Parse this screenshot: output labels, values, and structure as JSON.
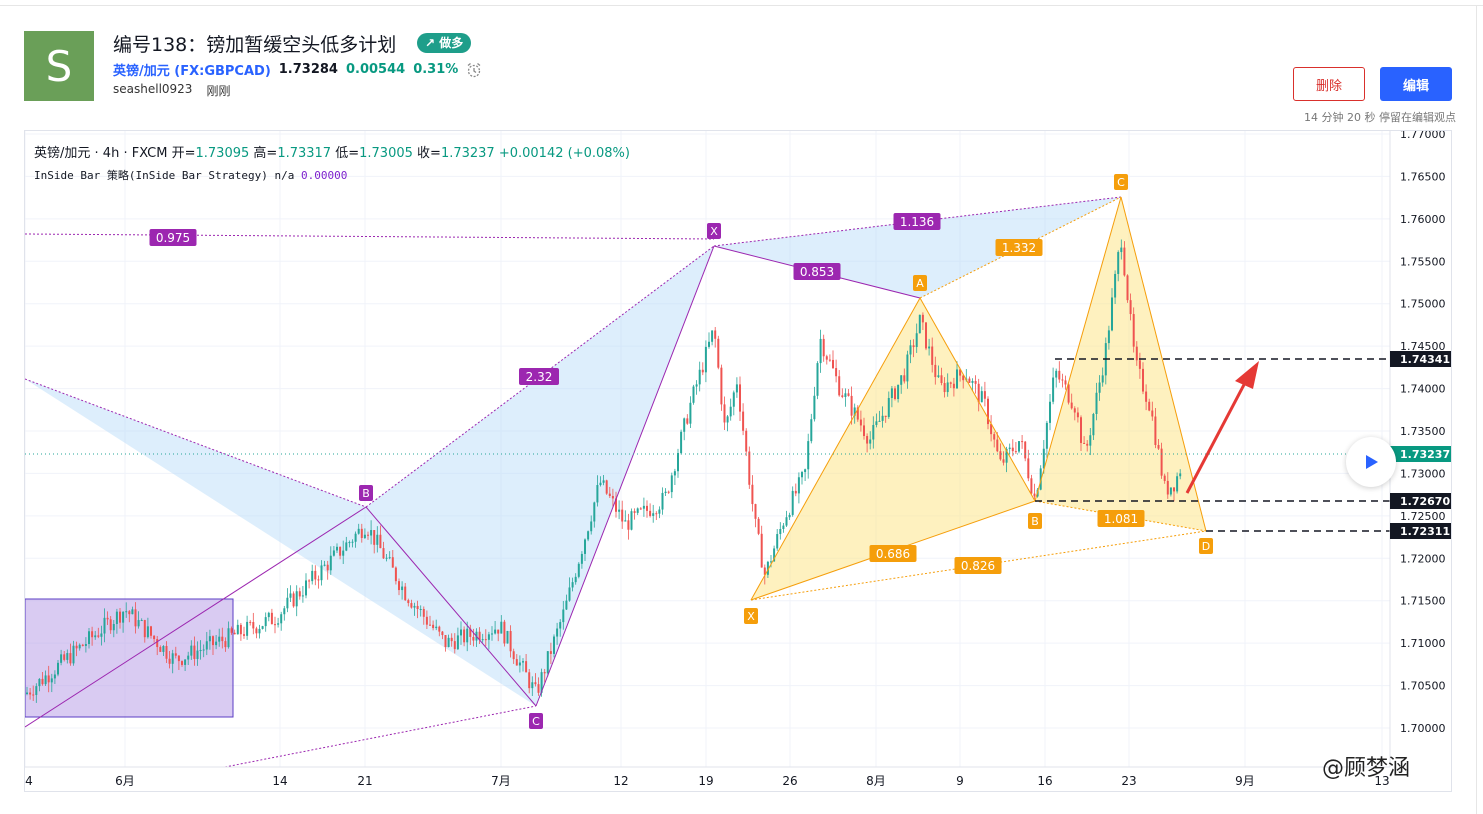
{
  "header": {
    "avatar_letter": "S",
    "title": "编号138：镑加暂缓空头低多计划",
    "badge": "↗ 做多",
    "symbol": "英镑/加元 (FX:GBPCAD)",
    "price": "1.73284",
    "change": "0.00544",
    "change_pct": "0.31%",
    "username": "seashell0923",
    "time": "刚刚",
    "delete_label": "删除",
    "edit_label": "编辑",
    "stay_text": "14 分钟 20 秒 停留在编辑观点"
  },
  "legend": {
    "line1": {
      "symbol": "英镑/加元",
      "interval": "4h",
      "source": "FXCM",
      "o_label": "开=",
      "o": "1.73095",
      "h_label": "高=",
      "h": "1.73317",
      "l_label": "低=",
      "l": "1.73005",
      "c_label": "收=",
      "c": "1.73237",
      "chg": "+0.00142 (+0.08%)"
    },
    "line2": {
      "name": "InSide Bar 策略(InSide Bar Strategy)",
      "na": "n/a",
      "value": "0.00000"
    }
  },
  "chart_data": {
    "type": "candlestick",
    "yaxis_ticks": [
      "1.77000",
      "1.76500",
      "1.76000",
      "1.75500",
      "1.75000",
      "1.74500",
      "1.74000",
      "1.73500",
      "1.73000",
      "1.72500",
      "1.72000",
      "1.71500",
      "1.71000",
      "1.70500",
      "1.70000"
    ],
    "price_tags": [
      {
        "label": "1.74341",
        "kind": "level",
        "color": "#131722"
      },
      {
        "label": "1.73237",
        "kind": "last",
        "color": "#089981"
      },
      {
        "label": "1.72670",
        "kind": "level",
        "color": "#131722"
      },
      {
        "label": "1.72311",
        "kind": "level",
        "color": "#131722"
      }
    ],
    "xaxis_ticks": [
      "4",
      "6月",
      "14",
      "21",
      "7月",
      "12",
      "19",
      "26",
      "8月",
      "9",
      "16",
      "23",
      "9月",
      "13"
    ],
    "patterns": [
      {
        "name": "XABCD-1",
        "points": [
          {
            "label": "X",
            "date": "before 6月",
            "price": 1.699
          },
          {
            "label": "B",
            "date": "6月21",
            "price": 1.726
          },
          {
            "label": "C",
            "date": "7月8",
            "price": 1.7025
          },
          {
            "label": "X",
            "date": "7月19",
            "price": 1.757
          }
        ],
        "ratios": [
          "0.975",
          "2.32"
        ],
        "color": "#9c27b0"
      },
      {
        "name": "XABCD-2",
        "points": [
          {
            "label": "X",
            "date": "7月19",
            "price": 1.757
          },
          {
            "label": "A",
            "date": "8月5",
            "price": 1.7505
          },
          {
            "label": "C",
            "date": "8月22",
            "price": 1.7625
          }
        ],
        "ratios": [
          "0.853",
          "1.136"
        ],
        "color": "#9c27b0"
      },
      {
        "name": "XABCD-3",
        "points": [
          {
            "label": "X",
            "date": "7月23",
            "price": 1.715
          },
          {
            "label": "A",
            "date": "8月5",
            "price": 1.7505
          },
          {
            "label": "B",
            "date": "8月16",
            "price": 1.7262
          },
          {
            "label": "C",
            "date": "8月22",
            "price": 1.7625
          },
          {
            "label": "D",
            "date": "8月29",
            "price": 1.7231
          }
        ],
        "ratios": [
          "0.686",
          "1.332",
          "1.081",
          "0.826"
        ],
        "color": "#f59e0b"
      }
    ],
    "levels": [
      1.74341,
      1.7267,
      1.72311
    ]
  },
  "watermark": "@顾梦涵"
}
